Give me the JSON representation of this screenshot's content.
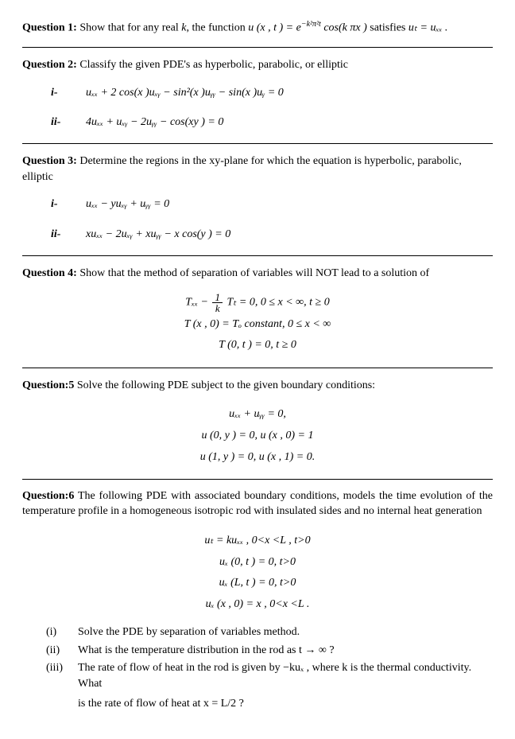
{
  "q1": {
    "label": "Question 1:",
    "text_before": " Show that for any real ",
    "k": "k",
    "text_mid1": ", the function ",
    "func": "u (x , t ) = e",
    "exp": "−k²π²t",
    "cos": " cos(k πx )",
    "text_mid2": " satisfies ",
    "rel": "uₜ = uₓₓ ."
  },
  "q2": {
    "label": "Question 2:",
    "text": " Classify the given PDE's as hyperbolic, parabolic, or elliptic",
    "items": [
      {
        "marker": "i-",
        "eq": "uₓₓ + 2 cos(x )uₓᵧ − sin²(x )uᵧᵧ − sin(x )uᵧ = 0"
      },
      {
        "marker": "ii-",
        "eq": "4uₓₓ + uₓᵧ − 2uᵧᵧ − cos(xy ) = 0"
      }
    ]
  },
  "q3": {
    "label": "Question 3:",
    "text": " Determine the regions in the xy-plane for which the equation is hyperbolic, parabolic, elliptic",
    "items": [
      {
        "marker": "i-",
        "eq": "uₓₓ − yuₓᵧ + uᵧᵧ = 0"
      },
      {
        "marker": "ii-",
        "eq": "xuₓₓ − 2uₓᵧ + xuᵧᵧ − x cos(y ) = 0"
      }
    ]
  },
  "q4": {
    "label": "Question 4:",
    "text": " Show that the method of separation of variables will NOT lead to a solution of",
    "lines": [
      "T (x , 0) = Tₒ constant,   0 ≤ x < ∞",
      "T (0, t ) = 0,   t ≥ 0"
    ],
    "line1_lhs": "Tₓₓ − ",
    "line1_frac_num": "1",
    "line1_frac_den": "k",
    "line1_rhs": " Tₜ = 0,   0 ≤ x < ∞,   t ≥ 0"
  },
  "q5": {
    "label": "Question:5",
    "text": " Solve the following PDE subject to the given boundary conditions:",
    "lines": [
      "uₓₓ + uᵧᵧ = 0,",
      "u (0, y ) = 0,   u (x , 0) = 1",
      "u (1, y ) = 0,   u (x , 1) = 0."
    ]
  },
  "q6": {
    "label": "Question:6",
    "text": " The following PDE with associated boundary conditions, models the time evolution of the temperature profile in a homogeneous isotropic rod with insulated sides and no internal heat generation",
    "lines": [
      "uₜ = kuₓₓ ,   0<x <L ,   t>0",
      "uₓ (0, t ) = 0,   t>0",
      "uₓ (L, t ) = 0,   t>0",
      "uₓ (x , 0) = x ,   0<x <L ."
    ],
    "parts": [
      {
        "m": "(i)",
        "t": "Solve the PDE by separation of variables method."
      },
      {
        "m": "(ii)",
        "t": "What is the temperature distribution in the rod as t → ∞ ?"
      },
      {
        "m": "(iii)",
        "t": "The rate of flow of heat in the rod is given by −kuₓ , where k is the thermal conductivity. What"
      }
    ],
    "final": "is the rate of flow of heat at x = L/2 ?"
  }
}
